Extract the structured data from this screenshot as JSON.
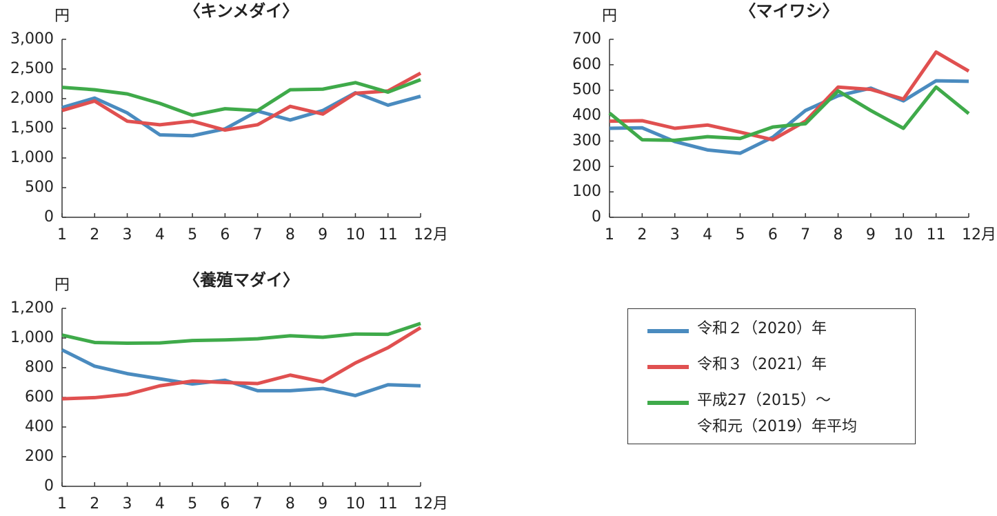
{
  "chart_data": [
    {
      "type": "line",
      "title": "〈キンメダイ〉",
      "y_unit": "円",
      "categories": [
        "1",
        "2",
        "3",
        "4",
        "5",
        "6",
        "7",
        "8",
        "9",
        "10",
        "11",
        "12月"
      ],
      "ylim": [
        0,
        3000
      ],
      "yticks": [
        0,
        500,
        {
          "value": 1000,
          "label": "1,000"
        },
        {
          "value": 1500,
          "label": "1,500"
        },
        {
          "value": 2000,
          "label": "2,000"
        },
        {
          "value": 2500,
          "label": "2,500"
        },
        {
          "value": 3000,
          "label": "3,000"
        }
      ],
      "series": [
        {
          "name": "令和２（2020）年",
          "color": "#4a8bbf",
          "values": [
            1850,
            2010,
            1760,
            1390,
            1375,
            1490,
            1790,
            1640,
            1800,
            2100,
            1890,
            2040
          ]
        },
        {
          "name": "令和３（2021）年",
          "color": "#e05050",
          "values": [
            1800,
            1960,
            1620,
            1560,
            1620,
            1470,
            1560,
            1870,
            1740,
            2090,
            2130,
            2430
          ]
        },
        {
          "name": "平成27（2015）～\n令和元（2019）年平均",
          "color": "#3faa4a",
          "values": [
            2190,
            2150,
            2080,
            1920,
            1720,
            1830,
            1800,
            2150,
            2160,
            2270,
            2110,
            2320
          ]
        }
      ]
    },
    {
      "type": "line",
      "title": "〈マイワシ〉",
      "y_unit": "円",
      "categories": [
        "1",
        "2",
        "3",
        "4",
        "5",
        "6",
        "7",
        "8",
        "9",
        "10",
        "11",
        "12月"
      ],
      "ylim": [
        0,
        700
      ],
      "yticks": [
        0,
        100,
        200,
        300,
        400,
        500,
        600,
        700
      ],
      "series": [
        {
          "color": "#4a8bbf",
          "values": [
            350,
            352,
            298,
            265,
            252,
            315,
            420,
            478,
            508,
            458,
            537,
            535
          ]
        },
        {
          "color": "#e05050",
          "values": [
            378,
            380,
            350,
            363,
            335,
            305,
            378,
            512,
            503,
            465,
            650,
            575
          ]
        },
        {
          "color": "#3faa4a",
          "values": [
            410,
            305,
            303,
            317,
            310,
            355,
            368,
            497,
            420,
            350,
            512,
            408
          ]
        }
      ]
    },
    {
      "type": "line",
      "title": "〈養殖マダイ〉",
      "y_unit": "円",
      "categories": [
        "1",
        "2",
        "3",
        "4",
        "5",
        "6",
        "7",
        "8",
        "9",
        "10",
        "11",
        "12月"
      ],
      "ylim": [
        0,
        1200
      ],
      "yticks": [
        0,
        200,
        400,
        600,
        800,
        {
          "value": 1000,
          "label": "1,000"
        },
        {
          "value": 1200,
          "label": "1,200"
        }
      ],
      "series": [
        {
          "color": "#4a8bbf",
          "values": [
            920,
            810,
            760,
            725,
            690,
            715,
            645,
            645,
            660,
            612,
            685,
            678
          ]
        },
        {
          "color": "#e05050",
          "values": [
            590,
            598,
            620,
            678,
            710,
            700,
            693,
            750,
            705,
            832,
            935,
            1070
          ]
        },
        {
          "color": "#3faa4a",
          "values": [
            1020,
            970,
            965,
            967,
            983,
            987,
            995,
            1015,
            1005,
            1027,
            1025,
            1098
          ]
        }
      ]
    }
  ]
}
